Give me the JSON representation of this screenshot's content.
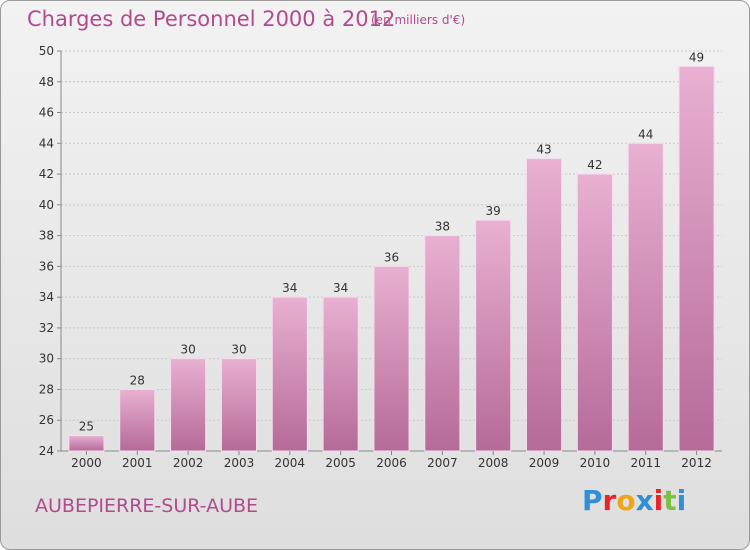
{
  "header": {
    "title": "Charges de Personnel 2000 à 2012",
    "subtitle": "(en milliers d'€)"
  },
  "footer": {
    "town": "AUBEPIERRE-SUR-AUBE",
    "logo_letters": [
      "P",
      "r",
      "o",
      "x",
      "i",
      "t",
      "i"
    ],
    "logo_colors": [
      "#2f8fd8",
      "#e8262a",
      "#f0a418",
      "#2f8fd8",
      "#e8262a",
      "#7bc043",
      "#2f8fd8"
    ]
  },
  "chart_data": {
    "type": "bar",
    "title": "Charges de Personnel 2000 à 2012",
    "subtitle": "(en milliers d'€)",
    "categories": [
      "2000",
      "2001",
      "2002",
      "2003",
      "2004",
      "2005",
      "2006",
      "2007",
      "2008",
      "2009",
      "2010",
      "2011",
      "2012"
    ],
    "values": [
      25,
      28,
      30,
      30,
      34,
      34,
      36,
      38,
      39,
      43,
      42,
      44,
      49
    ],
    "ylim": [
      24,
      50
    ],
    "yticks": [
      24,
      26,
      28,
      30,
      32,
      34,
      36,
      38,
      40,
      42,
      44,
      46,
      48,
      50
    ],
    "grid": true,
    "bar_color": "#d67fb3",
    "bar_color_light": "#e8b0d1",
    "bar_color_dark": "#b56a98"
  }
}
